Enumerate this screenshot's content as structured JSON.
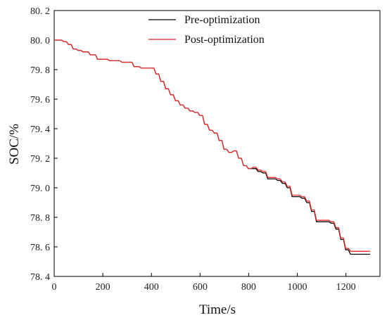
{
  "chart_data": {
    "type": "line",
    "title": "",
    "xlabel": "Time/s",
    "ylabel": "SOC/%",
    "xlim": [
      0,
      1340
    ],
    "ylim": [
      78.4,
      80.2
    ],
    "xticks": [
      0,
      200,
      400,
      600,
      800,
      1000,
      1200
    ],
    "yticks": [
      78.4,
      78.6,
      78.8,
      79.0,
      79.2,
      79.4,
      79.6,
      79.8,
      80.0,
      80.2
    ],
    "ytick_labels": [
      "78. 4",
      "78. 6",
      "78. 8",
      "79. 0",
      "79. 2",
      "79. 4",
      "79. 6",
      "79. 8",
      "80. 0",
      "80. 2"
    ],
    "grid": false,
    "legend_position": "top-right",
    "series": [
      {
        "name": "Pre-optimization",
        "color": "#000000",
        "x": [
          0,
          20,
          40,
          60,
          80,
          100,
          120,
          160,
          180,
          200,
          240,
          300,
          340,
          360,
          400,
          420,
          440,
          460,
          480,
          500,
          520,
          540,
          560,
          580,
          600,
          620,
          640,
          660,
          680,
          700,
          720,
          740,
          760,
          780,
          800,
          820,
          840,
          860,
          880,
          900,
          920,
          940,
          960,
          980,
          1000,
          1020,
          1040,
          1060,
          1080,
          1100,
          1120,
          1140,
          1160,
          1180,
          1200,
          1220,
          1240,
          1260,
          1280,
          1300
        ],
        "values": [
          80.0,
          80.0,
          79.99,
          79.97,
          79.94,
          79.93,
          79.92,
          79.9,
          79.87,
          79.87,
          79.86,
          79.85,
          79.82,
          79.81,
          79.81,
          79.77,
          79.72,
          79.67,
          79.63,
          79.59,
          79.56,
          79.54,
          79.52,
          79.51,
          79.49,
          79.43,
          79.39,
          79.37,
          79.32,
          79.26,
          79.24,
          79.25,
          79.2,
          79.15,
          79.13,
          79.13,
          79.11,
          79.1,
          79.06,
          79.06,
          79.05,
          79.03,
          79.0,
          78.94,
          78.94,
          78.93,
          78.9,
          78.84,
          78.77,
          78.77,
          78.77,
          78.76,
          78.72,
          78.65,
          78.58,
          78.55,
          78.55,
          78.55,
          78.55,
          78.55
        ]
      },
      {
        "name": "Post-optimization",
        "color": "#e8292a",
        "x": [
          0,
          20,
          40,
          60,
          80,
          100,
          120,
          160,
          180,
          200,
          240,
          300,
          340,
          360,
          400,
          420,
          440,
          460,
          480,
          500,
          520,
          540,
          560,
          580,
          600,
          620,
          640,
          660,
          680,
          700,
          720,
          740,
          760,
          780,
          800,
          820,
          840,
          860,
          880,
          900,
          920,
          940,
          960,
          980,
          1000,
          1020,
          1040,
          1060,
          1080,
          1100,
          1120,
          1140,
          1160,
          1180,
          1200,
          1220,
          1240,
          1260,
          1280,
          1300
        ],
        "values": [
          80.0,
          80.0,
          79.99,
          79.97,
          79.94,
          79.93,
          79.92,
          79.9,
          79.87,
          79.87,
          79.86,
          79.85,
          79.82,
          79.81,
          79.81,
          79.77,
          79.72,
          79.67,
          79.63,
          79.59,
          79.56,
          79.54,
          79.52,
          79.51,
          79.49,
          79.43,
          79.39,
          79.37,
          79.32,
          79.26,
          79.24,
          79.25,
          79.2,
          79.15,
          79.13,
          79.14,
          79.12,
          79.11,
          79.07,
          79.07,
          79.06,
          79.04,
          79.01,
          78.95,
          78.95,
          78.94,
          78.91,
          78.85,
          78.78,
          78.78,
          78.78,
          78.77,
          78.73,
          78.66,
          78.59,
          78.57,
          78.57,
          78.57,
          78.57,
          78.57
        ]
      }
    ]
  }
}
